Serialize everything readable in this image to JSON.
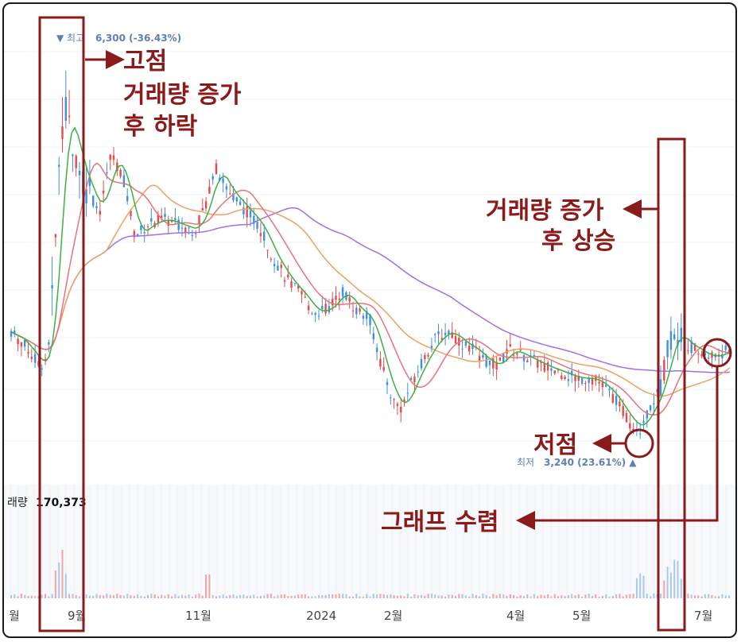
{
  "chart_data": {
    "type": "candlestick",
    "title": "",
    "x_ticks": [
      "월",
      "9월",
      "11월",
      "2024",
      "2월",
      "4월",
      "5월",
      "7월"
    ],
    "high_label": {
      "prefix": "▼ 최고",
      "value": "6,300 (-36.43%)"
    },
    "low_label": {
      "prefix": "최저",
      "value": "3,240 (23.61%) ▲"
    },
    "volume_label": {
      "prefix": "래량",
      "value": "170,373"
    },
    "price_range": [
      2900,
      6600
    ],
    "price_high": 6300,
    "price_low": 3240,
    "volume_last": 170373,
    "moving_averages": [
      {
        "color": "#3cb043",
        "description": "short"
      },
      {
        "color": "#e8727a",
        "description": "mid"
      },
      {
        "color": "#f0a060",
        "description": "long"
      },
      {
        "color": "#a070e8",
        "description": "longest"
      }
    ],
    "colors": {
      "up": "#e84a4a",
      "down": "#3f8fe8",
      "annotation": "#8b1a1a"
    }
  },
  "annotations": {
    "peak": [
      "고점",
      "거래량 증가",
      "후 하락"
    ],
    "rise": [
      "거래량 증가",
      "후 상승"
    ],
    "low": "저점",
    "converge": "그래프 수렴"
  }
}
